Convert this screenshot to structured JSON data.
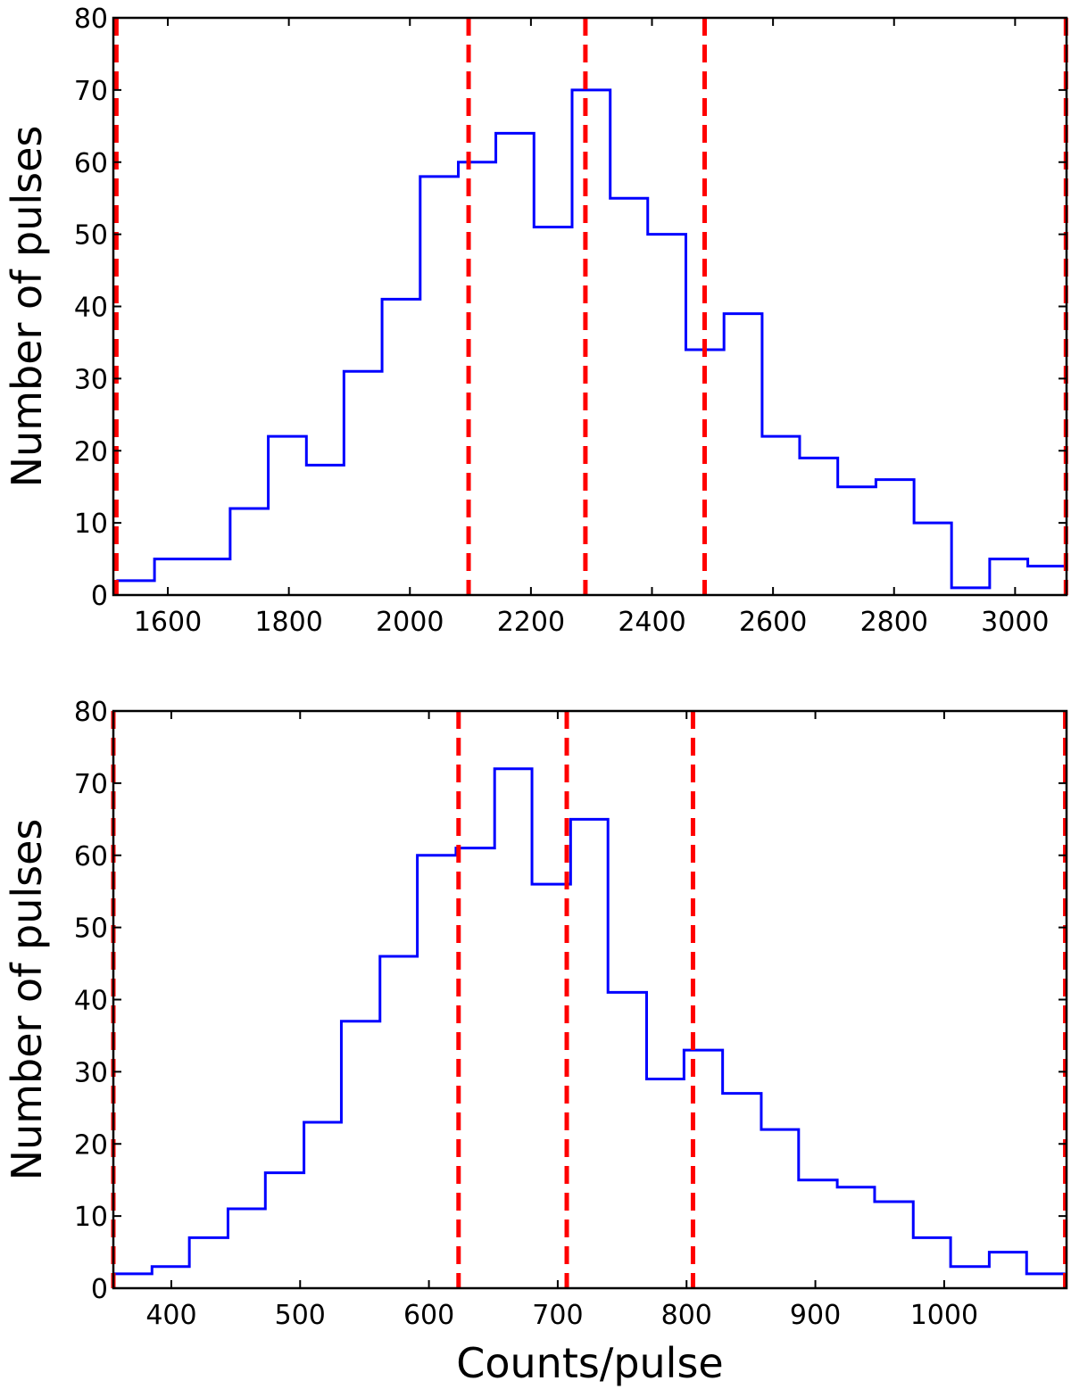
{
  "chart_data": [
    {
      "type": "histogram",
      "xlabel": "",
      "ylabel": "Number of pulses",
      "xlim": [
        1510,
        3085
      ],
      "ylim": [
        0,
        80
      ],
      "xticks": [
        1600,
        1800,
        2000,
        2200,
        2400,
        2600,
        2800,
        3000
      ],
      "yticks": [
        0,
        10,
        20,
        30,
        40,
        50,
        60,
        70,
        80
      ],
      "grid": false,
      "bin_edges": [
        1515,
        1578,
        1640,
        1703,
        1766,
        1829,
        1891,
        1954,
        2017,
        2080,
        2142,
        2205,
        2268,
        2331,
        2393,
        2456,
        2519,
        2582,
        2644,
        2707,
        2770,
        2833,
        2895,
        2958,
        3021,
        3084
      ],
      "counts": [
        2,
        5,
        5,
        12,
        22,
        18,
        31,
        41,
        58,
        60,
        64,
        51,
        70,
        55,
        50,
        34,
        39,
        22,
        19,
        15,
        16,
        10,
        1,
        5,
        4
      ],
      "vlines": [
        1515,
        2097,
        2290,
        2487,
        3084
      ],
      "colors": {
        "histogram": "#0000ff",
        "vlines": "#ff0000"
      }
    },
    {
      "type": "histogram",
      "xlabel": "Counts/pulse",
      "ylabel": "Number of pulses",
      "xlim": [
        355,
        1095
      ],
      "ylim": [
        0,
        80
      ],
      "xticks": [
        400,
        500,
        600,
        700,
        800,
        900,
        1000
      ],
      "yticks": [
        0,
        10,
        20,
        30,
        40,
        50,
        60,
        70,
        80
      ],
      "grid": false,
      "bin_edges": [
        355,
        385,
        414,
        444,
        473,
        503,
        532,
        562,
        591,
        621,
        651,
        680,
        710,
        739,
        769,
        798,
        828,
        858,
        887,
        917,
        946,
        976,
        1005,
        1035,
        1064,
        1094
      ],
      "counts": [
        2,
        3,
        7,
        11,
        16,
        23,
        37,
        46,
        60,
        61,
        72,
        56,
        65,
        41,
        29,
        33,
        27,
        22,
        15,
        14,
        12,
        7,
        3,
        5,
        2
      ],
      "vlines": [
        355,
        623,
        707,
        805,
        1094
      ],
      "colors": {
        "histogram": "#0000ff",
        "vlines": "#ff0000"
      }
    }
  ]
}
